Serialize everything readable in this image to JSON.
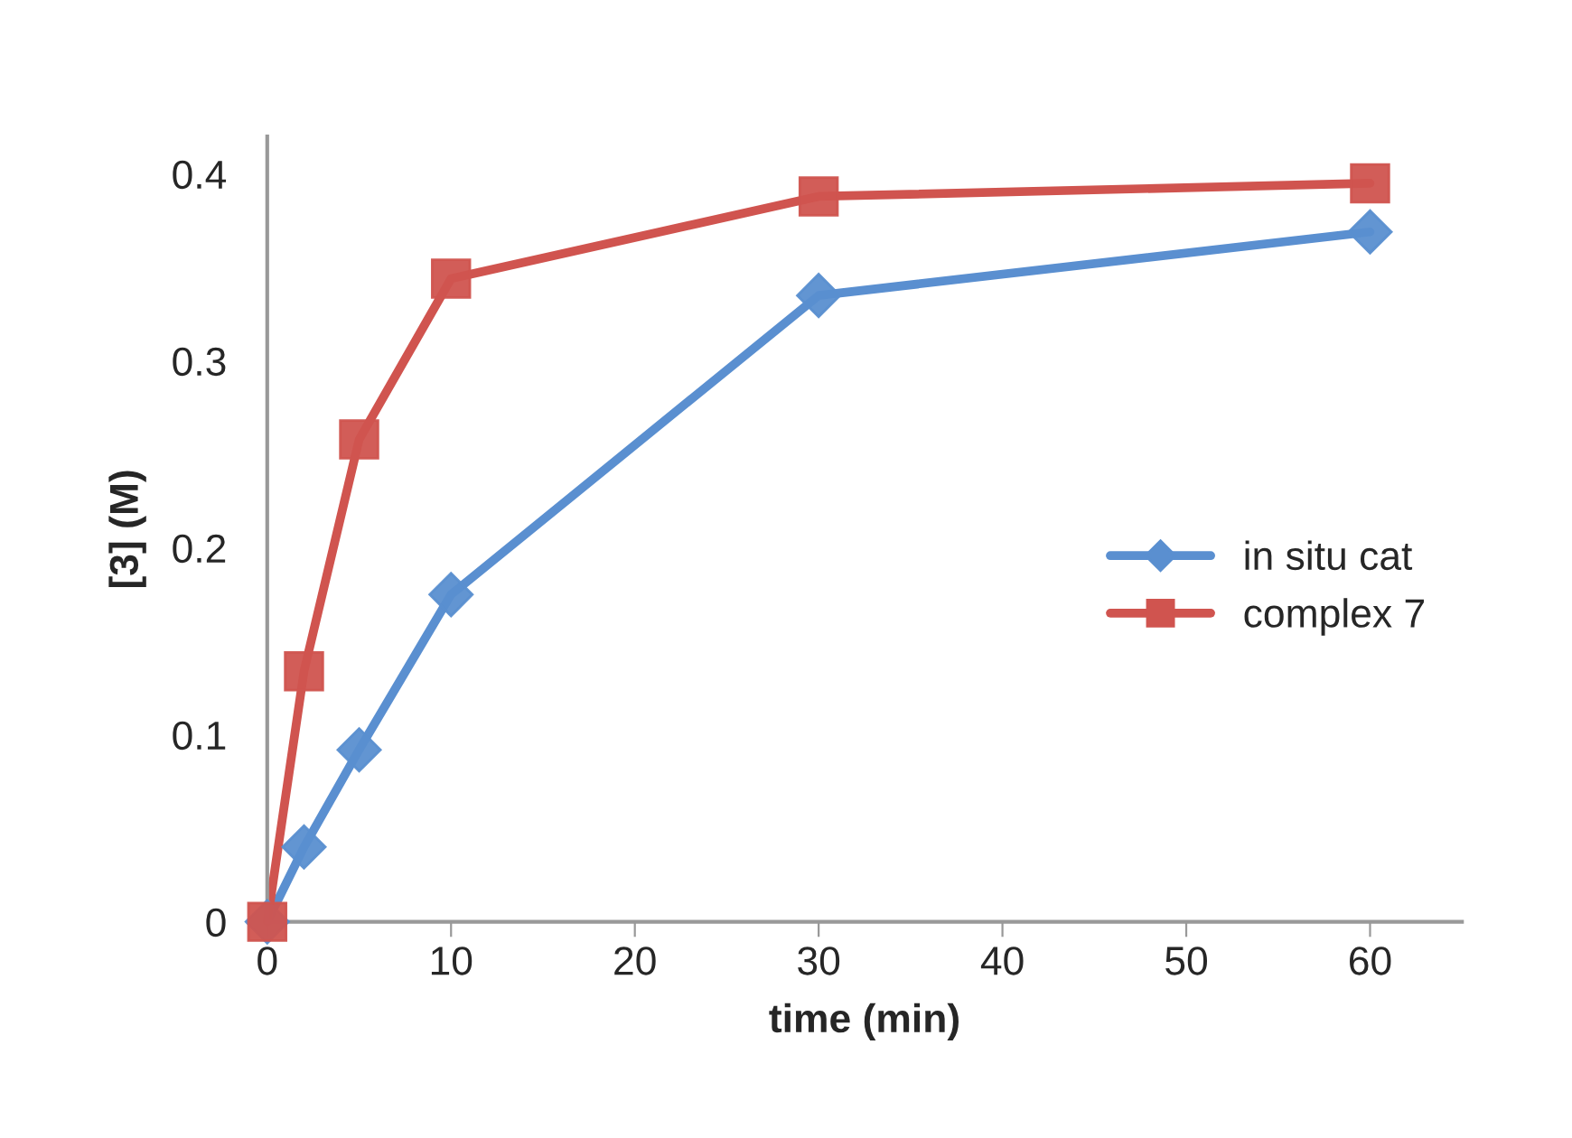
{
  "chart_data": {
    "type": "line",
    "xlabel": "time (min)",
    "ylabel": "[3] (M)",
    "x": [
      0,
      2,
      5,
      10,
      30,
      60
    ],
    "series": [
      {
        "name": "in situ cat",
        "color": "#5a8fd0",
        "marker": "diamond",
        "values": [
          0,
          0.04,
          0.092,
          0.175,
          0.335,
          0.369
        ]
      },
      {
        "name": "complex 7",
        "color": "#d0544f",
        "marker": "square",
        "values": [
          0,
          0.134,
          0.258,
          0.344,
          0.388,
          0.395
        ]
      }
    ],
    "xlim": [
      0,
      65
    ],
    "xticks": [
      0,
      10,
      20,
      30,
      40,
      50,
      60
    ],
    "ylim": [
      0,
      0.42
    ],
    "yticks": [
      0,
      0.1,
      0.2,
      0.3,
      0.4
    ],
    "grid": false,
    "legend": "center right",
    "line_style": "solid"
  }
}
